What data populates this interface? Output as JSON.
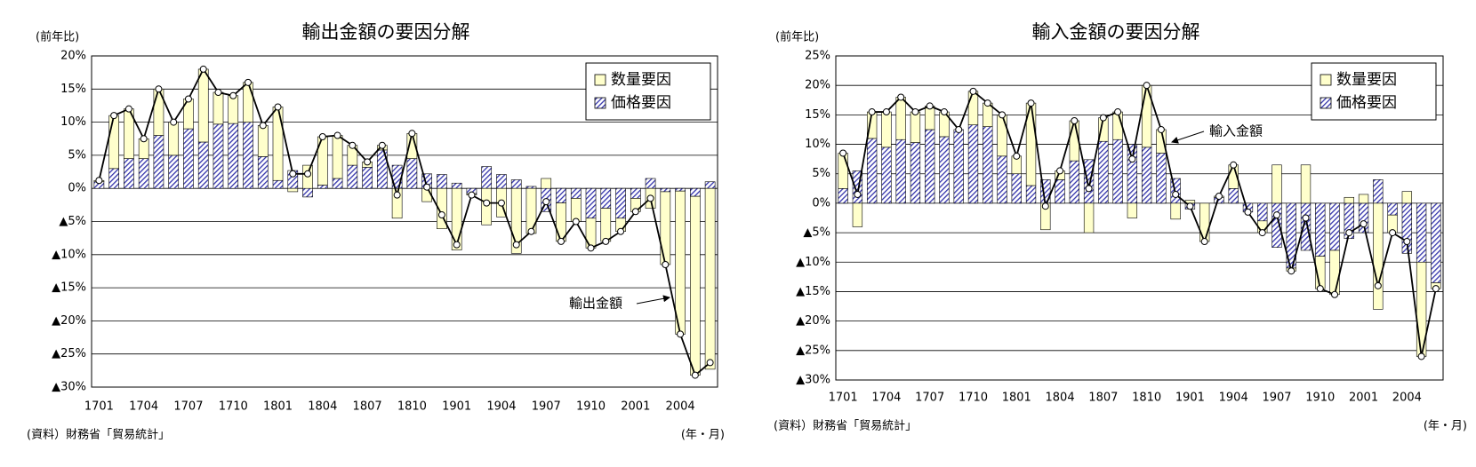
{
  "chart_data": [
    {
      "type": "bar",
      "stacked": true,
      "title": "輸出金額の要因分解",
      "y_label": "(前年比)",
      "x_label": "(年・月)",
      "source": "(資料）財務省「貿易統計」",
      "annotation": "輸出金額",
      "categories": [
        "1701",
        null,
        null,
        "1704",
        null,
        null,
        "1707",
        null,
        null,
        "1710",
        null,
        null,
        "1801",
        null,
        null,
        "1804",
        null,
        null,
        "1807",
        null,
        null,
        "1810",
        null,
        null,
        "1901",
        null,
        null,
        "1904",
        null,
        null,
        "1907",
        null,
        null,
        "1910",
        null,
        null,
        "2001",
        null,
        null,
        "2004",
        null,
        null
      ],
      "series": [
        {
          "name": "数量要因",
          "color": "#ffffcc",
          "values": [
            0.2,
            8,
            7.5,
            3,
            7,
            5,
            4.5,
            11,
            4.8,
            4.2,
            6,
            4.7,
            11.1,
            -0.5,
            3.5,
            7.3,
            6.5,
            3,
            0.8,
            0.7,
            -4.5,
            3.8,
            -2,
            -6.1,
            -9.3,
            -0.2,
            -5.5,
            -4.3,
            -9.8,
            -6.8,
            1.5,
            -5.8,
            -3.5,
            -4.5,
            -5,
            -2,
            -2,
            -3,
            -11,
            -21.6,
            -27,
            -27.3
          ]
        },
        {
          "name": "価格要因",
          "color": "#3333aa",
          "pattern": "hatch",
          "values": [
            1,
            3,
            4.5,
            4.5,
            8,
            5,
            9,
            7,
            9.7,
            9.8,
            10,
            4.8,
            1.2,
            2.7,
            -1.3,
            0.5,
            1.5,
            3.5,
            3.2,
            5.8,
            3.5,
            4.5,
            2.2,
            2.1,
            0.8,
            -0.8,
            3.3,
            2.1,
            1.3,
            0.3,
            -3.5,
            -2.2,
            -1.5,
            -4.5,
            -3,
            -4.5,
            -1.5,
            1.5,
            -0.5,
            -0.4,
            -1.2,
            1
          ]
        }
      ],
      "total": {
        "color": "#000000",
        "values": [
          1.2,
          11,
          12,
          7.5,
          15,
          10,
          13.5,
          18,
          14.5,
          14,
          16,
          9.5,
          12.3,
          2.2,
          2.2,
          7.8,
          8,
          6.5,
          4,
          6.5,
          -1,
          8.3,
          0.2,
          -4,
          -8.5,
          -1,
          -2.2,
          -2.2,
          -8.5,
          -6.5,
          -2,
          -8,
          -5,
          -9,
          -8,
          -6.5,
          -3.5,
          -1.5,
          -11.5,
          -22,
          -28.2,
          -26.3
        ]
      },
      "ylim": [
        -30,
        20
      ],
      "yticks": [
        {
          "value": -30,
          "label": "▲30%"
        },
        {
          "value": -25,
          "label": "▲25%"
        },
        {
          "value": -20,
          "label": "▲20%"
        },
        {
          "value": -15,
          "label": "▲15%"
        },
        {
          "value": -10,
          "label": "▲10%"
        },
        {
          "value": -5,
          "label": "▲5%"
        },
        {
          "value": 0,
          "label": "0%"
        },
        {
          "value": 5,
          "label": "5%"
        },
        {
          "value": 10,
          "label": "10%"
        },
        {
          "value": 15,
          "label": "15%"
        },
        {
          "value": 20,
          "label": "20%"
        }
      ],
      "grid": true,
      "legend": "top-right"
    },
    {
      "type": "bar",
      "stacked": true,
      "title": "輸入金額の要因分解",
      "y_label": "(前年比)",
      "x_label": "(年・月)",
      "source": "(資料）財務省「貿易統計」",
      "annotation": "輸入金額",
      "categories": [
        "1701",
        null,
        null,
        "1704",
        null,
        null,
        "1707",
        null,
        null,
        "1710",
        null,
        null,
        "1801",
        null,
        null,
        "1804",
        null,
        null,
        "1807",
        null,
        null,
        "1810",
        null,
        null,
        "1901",
        null,
        null,
        "1904",
        null,
        null,
        "1907",
        null,
        null,
        "1910",
        null,
        null,
        "2001",
        null,
        null,
        "2004",
        null,
        null
      ],
      "series": [
        {
          "name": "数量要因",
          "color": "#ffffcc",
          "values": [
            6,
            -4,
            4.5,
            6,
            7.2,
            5.2,
            4,
            4.2,
            0,
            5.7,
            4,
            7,
            3,
            14,
            -4.5,
            1.5,
            6.8,
            -5,
            4,
            4.7,
            -2.5,
            10.5,
            4,
            -2.7,
            0.5,
            -6.5,
            0.2,
            4,
            0,
            -2,
            6.5,
            -0.5,
            6.5,
            -5.5,
            -7.5,
            1,
            1.5,
            -18,
            -3,
            2,
            -16,
            -1
          ]
        },
        {
          "name": "価格要因",
          "color": "#3333aa",
          "pattern": "hatch",
          "values": [
            2.5,
            5.5,
            11,
            9.5,
            10.8,
            10.3,
            12.5,
            11.3,
            12.5,
            13.3,
            13,
            8,
            5,
            3,
            4,
            4,
            7.2,
            7.4,
            10.5,
            10.8,
            10,
            9.5,
            8.5,
            4.2,
            -1,
            0,
            1,
            2.5,
            -1.5,
            -3,
            -7.5,
            -11,
            -8,
            -9,
            -8,
            -6,
            -5,
            4,
            -2,
            -8.5,
            -10,
            -13.5
          ]
        }
      ],
      "total": {
        "color": "#000000",
        "values": [
          8.5,
          1.5,
          15.5,
          15.5,
          18,
          15.5,
          16.5,
          15.5,
          12.5,
          19,
          17,
          15,
          8,
          17,
          -0.5,
          5.5,
          14,
          2.5,
          14.5,
          15.5,
          7.5,
          20,
          12.5,
          1.5,
          -0.5,
          -6.5,
          1.2,
          6.5,
          -1.5,
          -5,
          -2,
          -11.5,
          -2.5,
          -14.5,
          -15.5,
          -5,
          -3.5,
          -14,
          -5,
          -6.5,
          -26,
          -14.5
        ]
      },
      "ylim": [
        -30,
        25
      ],
      "yticks": [
        {
          "value": -30,
          "label": "▲30%"
        },
        {
          "value": -25,
          "label": "▲25%"
        },
        {
          "value": -20,
          "label": "▲20%"
        },
        {
          "value": -15,
          "label": "▲15%"
        },
        {
          "value": -10,
          "label": "▲10%"
        },
        {
          "value": -5,
          "label": "▲5%"
        },
        {
          "value": 0,
          "label": "0%"
        },
        {
          "value": 5,
          "label": "5%"
        },
        {
          "value": 10,
          "label": "10%"
        },
        {
          "value": 15,
          "label": "15%"
        },
        {
          "value": 20,
          "label": "20%"
        },
        {
          "value": 25,
          "label": "25%"
        }
      ],
      "grid": true,
      "legend": "top-right"
    }
  ]
}
